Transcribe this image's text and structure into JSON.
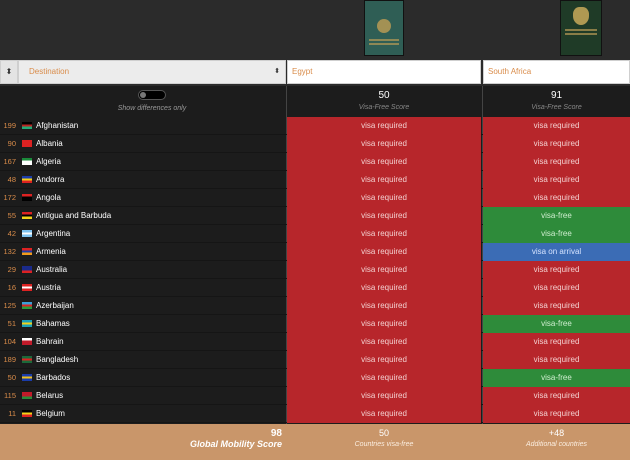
{
  "passports": [
    {
      "country": "Egypt",
      "color": "#2f5e55"
    },
    {
      "country": "South Africa",
      "color": "#1f3b27"
    }
  ],
  "columns": {
    "destination_label": "Destination",
    "egypt_label": "Egypt",
    "south_africa_label": "South Africa"
  },
  "toggle": {
    "label": "Show differences only"
  },
  "scores": {
    "egypt": "50",
    "south_africa": "91",
    "label": "Visa-Free Score"
  },
  "rows": [
    {
      "rank": "199",
      "country": "Afghanistan",
      "egypt": "visa required",
      "sa": "visa required",
      "flag": [
        "#000",
        "#b22",
        "#2a7"
      ]
    },
    {
      "rank": "90",
      "country": "Albania",
      "egypt": "visa required",
      "sa": "visa required",
      "flag": [
        "#d22",
        "#d22",
        "#d22"
      ]
    },
    {
      "rank": "167",
      "country": "Algeria",
      "egypt": "visa required",
      "sa": "visa required",
      "flag": [
        "#1a8a3a",
        "#fff",
        "#fff"
      ]
    },
    {
      "rank": "48",
      "country": "Andorra",
      "egypt": "visa required",
      "sa": "visa required",
      "flag": [
        "#1a3caa",
        "#f2d21a",
        "#d22"
      ]
    },
    {
      "rank": "172",
      "country": "Angola",
      "egypt": "visa required",
      "sa": "visa required",
      "flag": [
        "#d22",
        "#000",
        "#000"
      ]
    },
    {
      "rank": "55",
      "country": "Antigua and Barbuda",
      "egypt": "visa required",
      "sa": "visa-free",
      "flag": [
        "#d22",
        "#000",
        "#f2d21a"
      ]
    },
    {
      "rank": "42",
      "country": "Argentina",
      "egypt": "visa required",
      "sa": "visa-free",
      "flag": [
        "#7ec3f0",
        "#fff",
        "#7ec3f0"
      ]
    },
    {
      "rank": "132",
      "country": "Armenia",
      "egypt": "visa required",
      "sa": "visa on arrival",
      "flag": [
        "#d22",
        "#1a3caa",
        "#f29a1a"
      ]
    },
    {
      "rank": "29",
      "country": "Australia",
      "egypt": "visa required",
      "sa": "visa required",
      "flag": [
        "#1a2a8a",
        "#1a2a8a",
        "#d22"
      ]
    },
    {
      "rank": "16",
      "country": "Austria",
      "egypt": "visa required",
      "sa": "visa required",
      "flag": [
        "#d22",
        "#fff",
        "#d22"
      ]
    },
    {
      "rank": "125",
      "country": "Azerbaijan",
      "egypt": "visa required",
      "sa": "visa required",
      "flag": [
        "#3aa0d8",
        "#d22",
        "#2a9a3a"
      ]
    },
    {
      "rank": "51",
      "country": "Bahamas",
      "egypt": "visa required",
      "sa": "visa-free",
      "flag": [
        "#1aa0b8",
        "#f2d21a",
        "#1aa0b8"
      ]
    },
    {
      "rank": "104",
      "country": "Bahrain",
      "egypt": "visa required",
      "sa": "visa required",
      "flag": [
        "#fff",
        "#c21a2a",
        "#c21a2a"
      ]
    },
    {
      "rank": "189",
      "country": "Bangladesh",
      "egypt": "visa required",
      "sa": "visa required",
      "flag": [
        "#1a6a3a",
        "#d22",
        "#1a6a3a"
      ]
    },
    {
      "rank": "50",
      "country": "Barbados",
      "egypt": "visa required",
      "sa": "visa-free",
      "flag": [
        "#1a3caa",
        "#f2c21a",
        "#1a3caa"
      ]
    },
    {
      "rank": "115",
      "country": "Belarus",
      "egypt": "visa required",
      "sa": "visa required",
      "flag": [
        "#c21a2a",
        "#c21a2a",
        "#2a8a3a"
      ]
    },
    {
      "rank": "11",
      "country": "Belgium",
      "egypt": "visa required",
      "sa": "visa required",
      "flag": [
        "#000",
        "#f2d21a",
        "#d22"
      ]
    }
  ],
  "footer": {
    "global_score": "98",
    "global_label": "Global Mobility Score",
    "egypt_value": "50",
    "egypt_sub": "Countries visa-free",
    "sa_value": "+48",
    "sa_sub": "Additional countries"
  }
}
